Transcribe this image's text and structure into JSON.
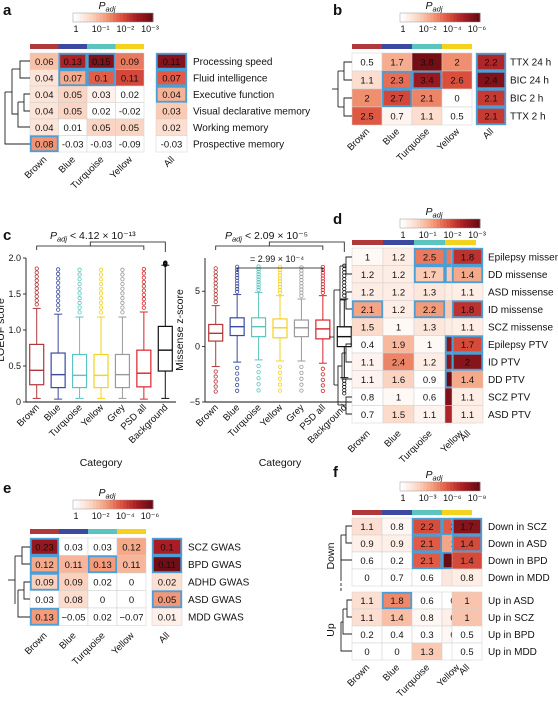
{
  "colors": {
    "brown": "#b0373a",
    "blue": "#3b4aa0",
    "turquoise": "#5cc4bf",
    "yellow": "#f4d21e",
    "highlight": "#4a9fd6",
    "heat_low": "#ffffff",
    "heat_high": "#6b0b14",
    "box_colors": [
      "#b0373a",
      "#3b4aa0",
      "#5cc4bf",
      "#f4d21e",
      "#9a9a9a",
      "#d9232a",
      "#111111"
    ]
  },
  "chart_data": [
    {
      "panel": "a",
      "type": "heatmap",
      "legend_title": "P",
      "legend_sub": "adj",
      "legend_ticks": [
        "1",
        "10⁻¹",
        "10⁻²",
        "10⁻³"
      ],
      "columns": [
        "Brown",
        "Blue",
        "Turquoise",
        "Yellow"
      ],
      "all_label": "All",
      "rows": [
        "Processing speed",
        "Fluid intelligence",
        "Executive function",
        "Visual declarative memory",
        "Working memory",
        "Prospective memory"
      ],
      "values": [
        [
          0.06,
          0.13,
          0.15,
          0.09
        ],
        [
          0.04,
          0.07,
          0.1,
          0.11
        ],
        [
          0.04,
          0.05,
          0.03,
          0.02
        ],
        [
          0.04,
          0.05,
          0.02,
          -0.02
        ],
        [
          0.04,
          0.01,
          0.05,
          0.05
        ],
        [
          0.08,
          -0.03,
          -0.03,
          -0.09
        ]
      ],
      "all_values": [
        0.11,
        0.07,
        0.04,
        0.03,
        0.02,
        -0.03
      ]
    },
    {
      "panel": "b",
      "type": "heatmap",
      "legend_title": "P",
      "legend_sub": "adj",
      "legend_ticks": [
        "1",
        "10⁻²",
        "10⁻⁴",
        "10⁻⁶"
      ],
      "columns": [
        "Brown",
        "Blue",
        "Turquoise",
        "Yellow"
      ],
      "all_label": "All",
      "rows": [
        "TTX 24 h",
        "BIC 24 h",
        "BIC 2 h",
        "TTX 2 h"
      ],
      "values": [
        [
          "0.5",
          "1.7",
          "3.8",
          "2"
        ],
        [
          "1.1",
          "2.3",
          "3.4",
          "2.6"
        ],
        [
          "2",
          "2.7",
          "2.1",
          "0"
        ],
        [
          "2.5",
          "0.7",
          "1.1",
          "0.5"
        ]
      ],
      "all_values": [
        "2.2",
        "2.4",
        "2.1",
        "2.1"
      ]
    },
    {
      "panel": "c",
      "type": "box",
      "plots": [
        {
          "ylabel": "LOEUF score",
          "xlabel": "Category",
          "ylim": [
            0,
            2
          ],
          "yticks": [
            "0",
            "0.5",
            "1.0",
            "1.5",
            "2.0"
          ],
          "annotation": "P",
          "annotation_sub": "adj",
          "annotation_value": " < 4.12 × 10⁻¹³",
          "categories": [
            "Brown",
            "Blue",
            "Turquoise",
            "Yellow",
            "Grey",
            "PSD all",
            "Background"
          ],
          "stats": [
            [
              0.05,
              0.24,
              0.44,
              0.8,
              1.3
            ],
            [
              0.04,
              0.2,
              0.38,
              0.68,
              1.22
            ],
            [
              0.05,
              0.2,
              0.37,
              0.66,
              1.18
            ],
            [
              0.05,
              0.2,
              0.37,
              0.66,
              1.18
            ],
            [
              0.05,
              0.2,
              0.38,
              0.66,
              1.18
            ],
            [
              0.04,
              0.21,
              0.4,
              0.72,
              1.25
            ],
            [
              0.05,
              0.43,
              0.72,
              1.05,
              1.9
            ]
          ]
        },
        {
          "ylabel": "Missense z-score",
          "xlabel": "Category",
          "ylim": [
            -5,
            8
          ],
          "yticks": [
            "−5",
            "0",
            "5"
          ],
          "annotation": "P",
          "annotation_sub": "adj",
          "annotation_value": " < 2.09 × 10⁻⁵",
          "annotation2": "= 2.99 × 10⁻⁴",
          "categories": [
            "Brown",
            "Blue",
            "Turquoise",
            "Yellow",
            "Grey",
            "PSD all",
            "Background"
          ],
          "stats": [
            [
              -1.8,
              0.5,
              1.2,
              2.0,
              3.7
            ],
            [
              -1.4,
              1.0,
              1.8,
              2.6,
              4.7
            ],
            [
              -1.2,
              0.9,
              1.8,
              2.6,
              4.9
            ],
            [
              -1.3,
              0.8,
              1.7,
              2.5,
              4.6
            ],
            [
              -1.3,
              0.9,
              1.7,
              2.4,
              4.3
            ],
            [
              -1.5,
              0.7,
              1.6,
              2.4,
              4.6
            ],
            [
              -2.8,
              0.0,
              0.9,
              1.8,
              4.3
            ]
          ]
        }
      ]
    },
    {
      "panel": "d",
      "type": "heatmap",
      "legend_title": "P",
      "legend_sub": "adj",
      "legend_ticks": [
        "1",
        "10⁻¹",
        "10⁻²",
        "10⁻³"
      ],
      "columns": [
        "Brown",
        "Blue",
        "Turquoise",
        "Yellow"
      ],
      "all_label": "All",
      "rows": [
        "Epilepsy missense",
        "DD missense",
        "ASD missense",
        "ID missense",
        "SCZ missense",
        "Epilepsy PTV",
        "ID PTV",
        "DD PTV",
        "SCZ PTV",
        "ASD PTV"
      ],
      "values": [
        [
          "1",
          "1.2",
          "2.5",
          "2.5"
        ],
        [
          "1.2",
          "1.2",
          "1.7",
          "1.7"
        ],
        [
          "1.2",
          "1.2",
          "1.3",
          "1.2"
        ],
        [
          "2.1",
          "1.2",
          "2.2",
          "1.7"
        ],
        [
          "1.5",
          "1",
          "1.3",
          "1.2"
        ],
        [
          "0.4",
          "1.9",
          "1",
          "10.7"
        ],
        [
          "1.1",
          "2.4",
          "1.2",
          "7.8"
        ],
        [
          "1.1",
          "1.6",
          "0.9",
          "4.8"
        ],
        [
          "0.8",
          "1",
          "0.6",
          "3.9"
        ],
        [
          "0.7",
          "1.5",
          "1.1",
          "3.4"
        ]
      ],
      "all_values": [
        "1.8",
        "1.4",
        "1.1",
        "1.8",
        "1.1",
        "1.7",
        "2",
        "1.4",
        "1.1",
        "1.1"
      ]
    },
    {
      "panel": "e",
      "type": "heatmap",
      "legend_title": "P",
      "legend_sub": "adj",
      "legend_ticks": [
        "1",
        "10⁻²",
        "10⁻⁴",
        "10⁻⁶"
      ],
      "columns": [
        "Brown",
        "Blue",
        "Turquoise",
        "Yellow"
      ],
      "all_label": "All",
      "rows": [
        "SCZ GWAS",
        "BPD GWAS",
        "ADHD GWAS",
        "ASD GWAS",
        "MDD GWAS"
      ],
      "values": [
        [
          "0.23",
          "0.03",
          "0.03",
          "0.12"
        ],
        [
          "0.12",
          "0.11",
          "0.13",
          "0.11"
        ],
        [
          "0.09",
          "0.09",
          "0.02",
          "0"
        ],
        [
          "0.03",
          "0.08",
          "0",
          "0"
        ],
        [
          "0.13",
          "−0.05",
          "0.02",
          "−0.07"
        ]
      ],
      "all_values": [
        "0.1",
        "0.11",
        "0.02",
        "0.05",
        "0.01"
      ]
    },
    {
      "panel": "f",
      "type": "heatmap",
      "legend_title": "P",
      "legend_sub": "adj",
      "legend_ticks": [
        "1",
        "10⁻³",
        "10⁻⁶",
        "10⁻⁹"
      ],
      "columns": [
        "Brown",
        "Blue",
        "Turquoise",
        "Yellow"
      ],
      "all_label": "All",
      "group_labels": [
        "Down",
        "Up"
      ],
      "rows": [
        "Down in SCZ",
        "Down in ASD",
        "Down in BPD",
        "Down in MDD",
        "Up in ASD",
        "Up in SCZ",
        "Up in BPD",
        "Up in MDD"
      ],
      "values": [
        [
          "1.1",
          "0.8",
          "2.2",
          "2.1"
        ],
        [
          "0.9",
          "0.9",
          "2.1",
          "1.6"
        ],
        [
          "0.6",
          "0.2",
          "2.1",
          "3.8"
        ],
        [
          "0",
          "0.7",
          "0.6",
          "1"
        ],
        [
          "1.1",
          "1.8",
          "0.6",
          "0.7"
        ],
        [
          "1.1",
          "1.4",
          "0.8",
          "0.9"
        ],
        [
          "0.2",
          "0.4",
          "0.3",
          "0.8"
        ],
        [
          "0",
          "0",
          "1.3",
          "0"
        ]
      ],
      "all_values": [
        "1.7",
        "1.4",
        "1.4",
        "0.8",
        "1",
        "1",
        "0.5",
        "0.5"
      ]
    }
  ]
}
